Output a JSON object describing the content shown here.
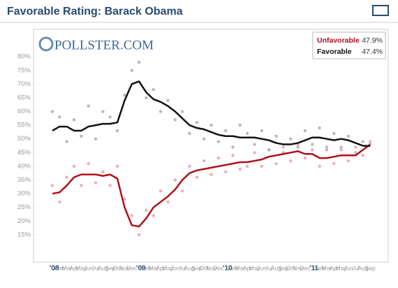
{
  "chart_data": {
    "type": "line",
    "title": "Favorable Rating: Barack Obama",
    "source_logo": "POLLSTER.COM",
    "categories": [
      "'08",
      "Feb",
      "Mar",
      "Apr",
      "May",
      "Jun",
      "Jul",
      "Aug",
      "Sep",
      "Oct",
      "Nov",
      "Dec",
      "'09",
      "Feb",
      "Mar",
      "Apr",
      "May",
      "Jun",
      "Jul",
      "Aug",
      "Sep",
      "Oct",
      "Nov",
      "Dec",
      "'10",
      "Feb",
      "Mar",
      "Apr",
      "May",
      "Jun",
      "Jul",
      "Aug",
      "Sep",
      "Oct",
      "Nov",
      "Dec",
      "'11",
      "Feb",
      "Mar",
      "Apr",
      "May",
      "Jun",
      "Jul",
      "Aug",
      "Sep"
    ],
    "series": [
      {
        "name": "Unfavorable",
        "color": "#b0101c",
        "dot_color": "#e89aa0",
        "legend_value": 47.9,
        "legend_value_label": "47.9%",
        "values": [
          30,
          30.5,
          33,
          36,
          37,
          37,
          37,
          36.5,
          37,
          35.5,
          25,
          18.5,
          18,
          21,
          25,
          27,
          29,
          31.5,
          35,
          37.5,
          38.5,
          39,
          39.5,
          40,
          40.5,
          41,
          41.5,
          41.5,
          42,
          42.5,
          43.5,
          44,
          44.5,
          45,
          45.5,
          44.5,
          44.5,
          43,
          43,
          43.5,
          44,
          44,
          44,
          46,
          47.9
        ],
        "polls": [
          33,
          27,
          36,
          40,
          33,
          41,
          34,
          38,
          33,
          40,
          28,
          22,
          15,
          24,
          22,
          31,
          27,
          35,
          31,
          40,
          36,
          42,
          37,
          43,
          38,
          44,
          39,
          40,
          45,
          40,
          46,
          41,
          47,
          42,
          48,
          43,
          46,
          40,
          47,
          41,
          46,
          42,
          47,
          44,
          49
        ]
      },
      {
        "name": "Favorable",
        "color": "#111111",
        "dot_color": "#a8a8a8",
        "legend_value": 47.4,
        "legend_value_label": "47.4%",
        "values": [
          53,
          54.5,
          54.5,
          53,
          53,
          54.5,
          55,
          55.5,
          55.5,
          56,
          64,
          70,
          71,
          67,
          64.5,
          63.5,
          62,
          60,
          57.5,
          55,
          54,
          53.5,
          52.5,
          51.5,
          51,
          51,
          50.5,
          50.5,
          50.5,
          50,
          49.5,
          48.5,
          48,
          48,
          48.5,
          49.5,
          50.5,
          50.5,
          50,
          49.5,
          50,
          49.5,
          48.5,
          47.5,
          47.4
        ],
        "polls": [
          60,
          58,
          49,
          57,
          51,
          62,
          50,
          60,
          58,
          53,
          66,
          75,
          78,
          65,
          68,
          60,
          64,
          57,
          60,
          52,
          56,
          50,
          55,
          49,
          53,
          47,
          55,
          52,
          48,
          53,
          46,
          51,
          45,
          50,
          47,
          53,
          48,
          54,
          46,
          52,
          47,
          51,
          45,
          49,
          48
        ]
      }
    ],
    "ylim": [
      5,
      90
    ],
    "yticks": [
      {
        "value": 15,
        "label": "15%"
      },
      {
        "value": 20,
        "label": "20%"
      },
      {
        "value": 25,
        "label": "25%"
      },
      {
        "value": 30,
        "label": "30%"
      },
      {
        "value": 35,
        "label": "35%"
      },
      {
        "value": 40,
        "label": "40%"
      },
      {
        "value": 45,
        "label": "45%"
      },
      {
        "value": 50,
        "label": "50%"
      },
      {
        "value": 55,
        "label": "55%"
      },
      {
        "value": 60,
        "label": "60%"
      },
      {
        "value": 65,
        "label": "65%"
      },
      {
        "value": 70,
        "label": "70%"
      },
      {
        "value": 75,
        "label": "75%"
      },
      {
        "value": 80,
        "label": "80%"
      }
    ],
    "grid": false
  }
}
